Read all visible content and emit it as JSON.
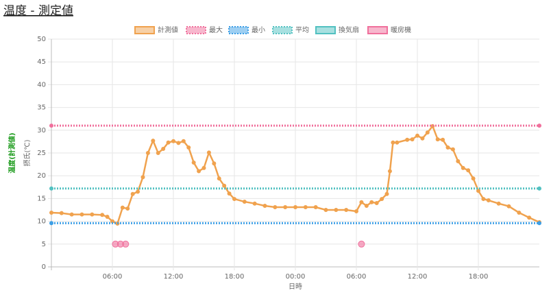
{
  "chart_data": {
    "type": "line",
    "title": "温度 - 測定値",
    "y_label_main": "温度(計測値)",
    "y_label": "摂氏(℃)",
    "x_label": "日時",
    "x": [
      0,
      1,
      2,
      3,
      4,
      5,
      5.5,
      6,
      6.5,
      7,
      7.5,
      8,
      8.5,
      9,
      9.5,
      10,
      10.5,
      11,
      11.5,
      12,
      12.5,
      13,
      13.5,
      14,
      14.5,
      15,
      15.5,
      16,
      16.5,
      17,
      17.5,
      18,
      19,
      20,
      21,
      22,
      23,
      24,
      25,
      26,
      27,
      28,
      29,
      30,
      30.5,
      31,
      31.5,
      32,
      32.5,
      33,
      33.3,
      33.6,
      34,
      35,
      35.5,
      36,
      36.5,
      37,
      37.5,
      38,
      38.5,
      39,
      39.5,
      40,
      40.5,
      41,
      41.5,
      42,
      42.5,
      43,
      44,
      45,
      46,
      47,
      48
    ],
    "xlim": [
      0,
      48
    ],
    "xticks": [
      {
        "value": 6,
        "label": "06:00"
      },
      {
        "value": 12,
        "label": "12:00"
      },
      {
        "value": 18,
        "label": "18:00"
      },
      {
        "value": 24,
        "label": "00:00"
      },
      {
        "value": 30,
        "label": "06:00"
      },
      {
        "value": 36,
        "label": "12:00"
      },
      {
        "value": 42,
        "label": "18:00"
      }
    ],
    "ylim": [
      0,
      50
    ],
    "yticks": [
      0,
      5,
      10,
      15,
      20,
      25,
      30,
      35,
      40,
      45,
      50
    ],
    "grid": true,
    "series": [
      {
        "name": "計測値",
        "color": "#f0a24e",
        "style": "solid",
        "values": [
          11.9,
          11.8,
          11.5,
          11.5,
          11.5,
          11.4,
          11,
          10,
          9.5,
          13,
          12.8,
          16,
          16.5,
          19.7,
          25,
          27.7,
          25,
          25.9,
          27.3,
          27.6,
          27.2,
          27.6,
          26.2,
          22.9,
          21,
          21.7,
          25.1,
          22.7,
          19.4,
          17.8,
          16.1,
          14.9,
          14.3,
          13.9,
          13.4,
          13.1,
          13.1,
          13.1,
          13.1,
          13.1,
          12.5,
          12.5,
          12.5,
          12.2,
          14.2,
          13.4,
          14.2,
          14,
          14.9,
          16,
          21,
          27.3,
          27.3,
          27.9,
          28,
          28.8,
          28.2,
          29.5,
          30.9,
          28,
          27.9,
          26.2,
          25.8,
          23.2,
          21.7,
          21.2,
          19.4,
          16.7,
          14.9,
          14.6,
          13.9,
          13.3,
          11.9,
          10.8,
          9.8
        ]
      },
      {
        "name": "最大",
        "color": "#f0709c",
        "style": "dotted",
        "x": [
          0,
          48
        ],
        "values": [
          31,
          31
        ]
      },
      {
        "name": "最小",
        "color": "#3d9fe6",
        "style": "dotted",
        "x": [
          0,
          48
        ],
        "values": [
          9.6,
          9.6
        ]
      },
      {
        "name": "平均",
        "color": "#52c1c1",
        "style": "dotted",
        "x": [
          0,
          48
        ],
        "values": [
          17.2,
          17.2
        ]
      },
      {
        "name": "換気扇",
        "color": "#52c1c1",
        "style": "solid",
        "x": [],
        "values": []
      },
      {
        "name": "暖房機",
        "color": "#f0709c",
        "style": "points",
        "x": [
          6.3,
          6.8,
          7.3,
          30.5
        ],
        "values": [
          5,
          5,
          5,
          5
        ]
      }
    ]
  }
}
